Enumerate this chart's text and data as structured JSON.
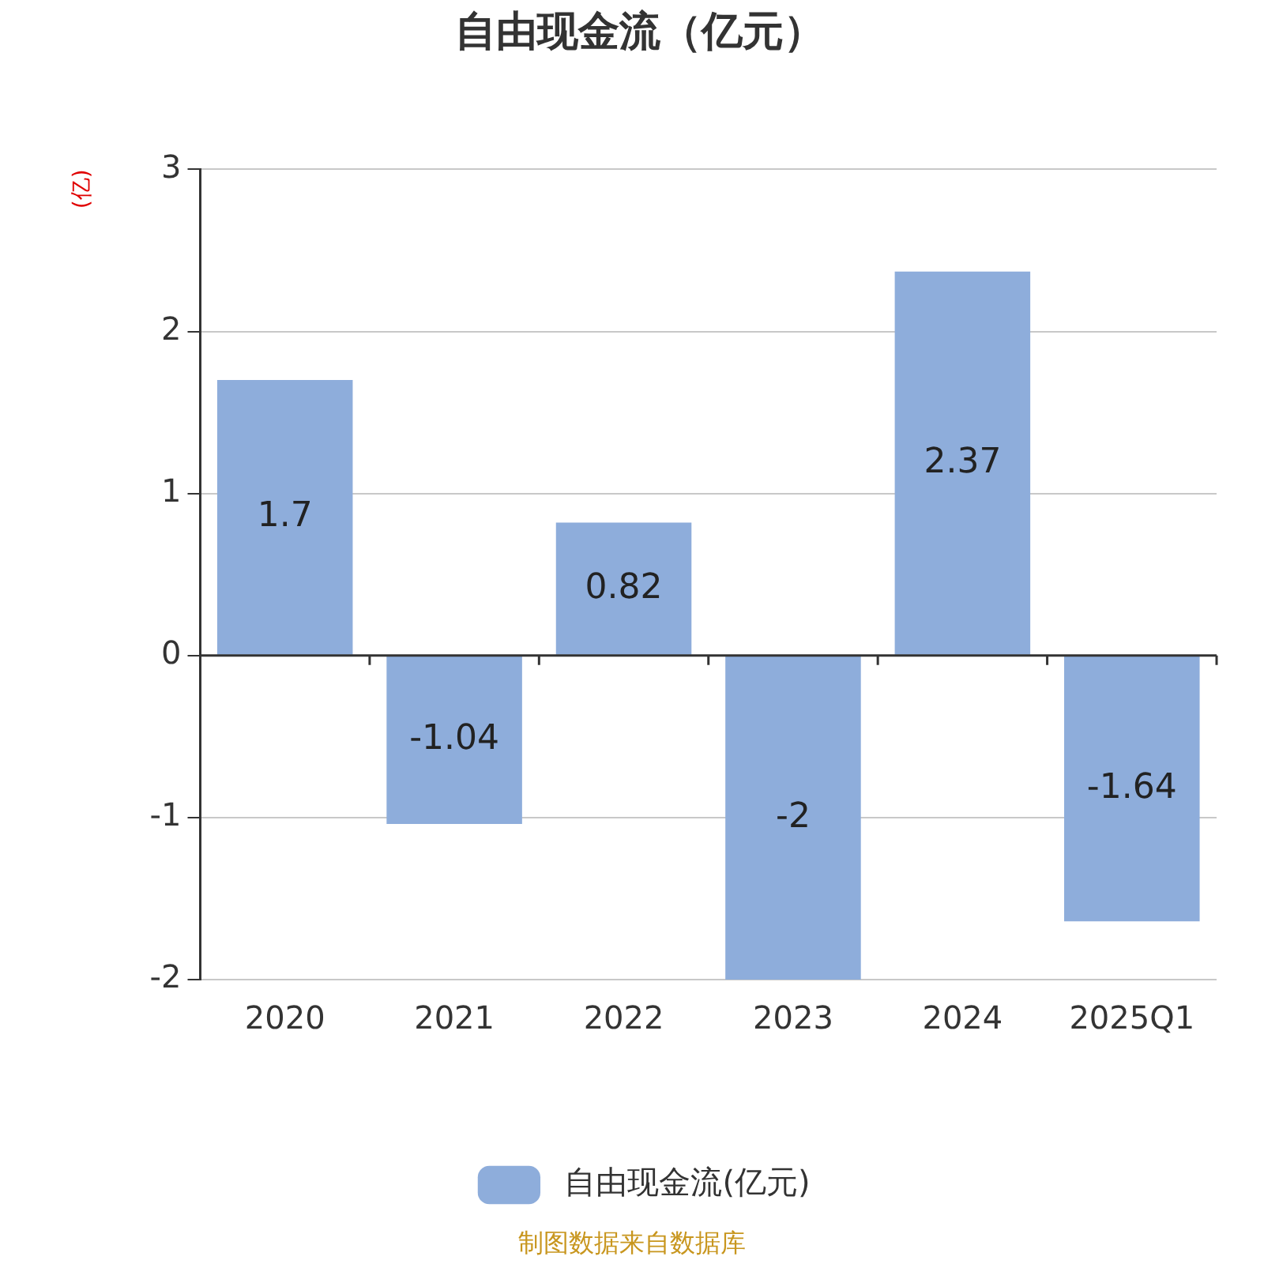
{
  "chart_data": {
    "type": "bar",
    "title": "自由现金流（亿元）",
    "ylabel": "(亿)",
    "categories": [
      "2020",
      "2021",
      "2022",
      "2023",
      "2024",
      "2025Q1"
    ],
    "series": [
      {
        "name": "自由现金流(亿元)",
        "color": "#8eaddb",
        "values": [
          1.7,
          -1.04,
          0.82,
          -2,
          2.37,
          -1.64
        ]
      }
    ],
    "ylim": [
      -2,
      3
    ],
    "yticks": [
      -2,
      -1,
      0,
      1,
      2,
      3
    ],
    "grid": "y",
    "legend": "bottom",
    "data_labels": true,
    "annotations": [
      "制图数据来自数据库"
    ]
  }
}
